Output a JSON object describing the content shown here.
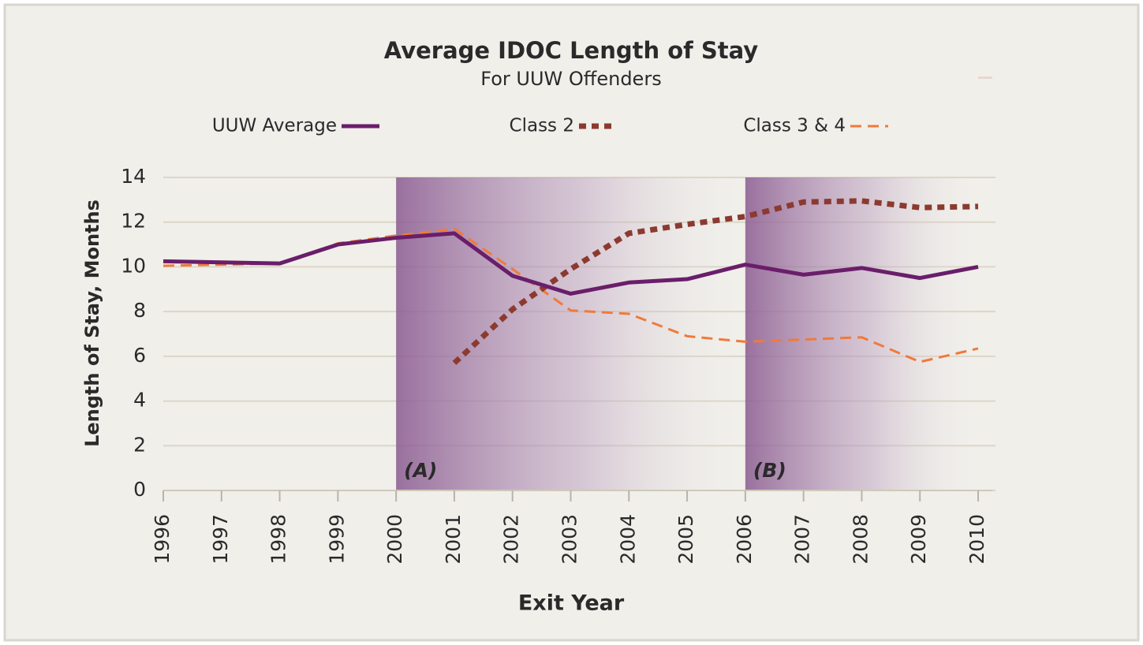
{
  "chart_data": {
    "type": "line",
    "title": "Average IDOC Length of Stay",
    "subtitle": "For UUW Offenders",
    "xlabel": "Exit Year",
    "ylabel": "Length of Stay, Months",
    "x": [
      1996,
      1997,
      1998,
      1999,
      2000,
      2001,
      2002,
      2003,
      2004,
      2005,
      2006,
      2007,
      2008,
      2009,
      2010
    ],
    "series": [
      {
        "name": "UUW Average",
        "color": "#6a1e6a",
        "style": "solid",
        "values": [
          10.25,
          10.2,
          10.15,
          11.0,
          11.3,
          11.5,
          9.6,
          8.8,
          9.3,
          9.45,
          10.1,
          9.65,
          9.95,
          9.5,
          10.0
        ]
      },
      {
        "name": "Class 2",
        "color": "#8c3a30",
        "style": "dotted",
        "values": [
          null,
          null,
          null,
          null,
          null,
          5.7,
          8.1,
          9.9,
          11.5,
          11.9,
          12.25,
          12.9,
          12.95,
          12.65,
          12.7
        ]
      },
      {
        "name": "Class 3 & 4",
        "color": "#f07a3a",
        "style": "dashed",
        "values": [
          10.05,
          10.1,
          10.15,
          11.05,
          11.4,
          11.7,
          9.9,
          8.05,
          7.9,
          6.9,
          6.65,
          6.75,
          6.85,
          5.75,
          6.35
        ]
      }
    ],
    "regions": [
      {
        "label": "(A)",
        "x": [
          2000,
          2006
        ]
      },
      {
        "label": "(B)",
        "x": [
          2006,
          2010
        ]
      }
    ],
    "xlim": [
      1996,
      2010
    ],
    "xticks": [
      1996,
      1997,
      1998,
      1999,
      2000,
      2001,
      2002,
      2003,
      2004,
      2005,
      2006,
      2007,
      2008,
      2009,
      2010
    ],
    "ylim": [
      0,
      14
    ],
    "yticks": [
      0,
      2,
      4,
      6,
      8,
      10,
      12,
      14
    ],
    "grid": true
  }
}
